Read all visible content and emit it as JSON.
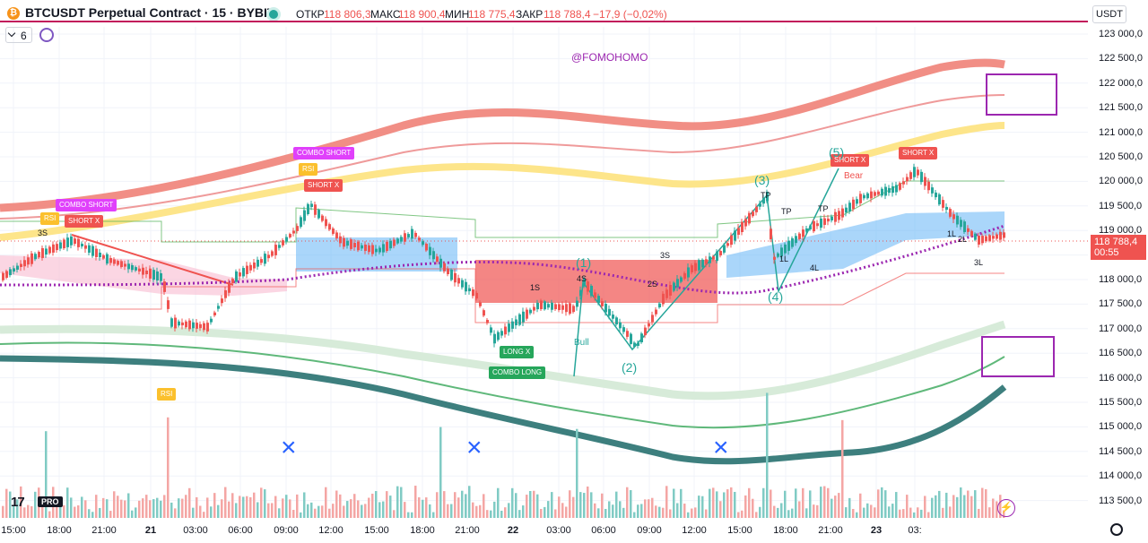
{
  "header": {
    "logo_glyph": "₿",
    "title": "BTCUSDT Perpetual Contract · 15 · BYBIT",
    "open_label": "ОТКР",
    "open_value": "118 806,3",
    "high_label": "МАКС",
    "high_value": "118 900,4",
    "low_label": "МИН",
    "low_value": "118 775,4",
    "close_label": "ЗАКР",
    "close_value": "118 788,4",
    "change": "−17,9 (−0,02%)"
  },
  "toolbar": {
    "interval_value": "6",
    "sync_icon": "sync-icon"
  },
  "currency": "USDT",
  "watermark": "@FOMOHOMO",
  "last_price": {
    "value": "118 788,4",
    "countdown": "00:55"
  },
  "price_axis": [
    "123 000,0",
    "122 500,0",
    "122 000,0",
    "121 500,0",
    "121 000,0",
    "120 500,0",
    "120 000,0",
    "119 500,0",
    "119 000,0",
    "118 500,0",
    "118 000,0",
    "117 500,0",
    "117 000,0",
    "116 500,0",
    "116 000,0",
    "115 500,0",
    "115 000,0",
    "114 500,0",
    "114 000,0",
    "113 500,0"
  ],
  "time_axis": [
    "15:00",
    "18:00",
    "21:00",
    "21",
    "03:00",
    "06:00",
    "09:00",
    "12:00",
    "15:00",
    "18:00",
    "21:00",
    "22",
    "03:00",
    "06:00",
    "09:00",
    "12:00",
    "15:00",
    "18:00",
    "21:00",
    "23",
    "03:"
  ],
  "signals": {
    "combo_short": "COMBO SHORT",
    "short_x": "SHORT X",
    "long_x": "LONG X",
    "combo_long": "COMBO LONG",
    "rsi": "RSI",
    "bear": "Bear",
    "bull": "Bull",
    "tp": "TP"
  },
  "markers": [
    "3S",
    "1S",
    "2S",
    "3S",
    "4S",
    "1L",
    "2L",
    "3L",
    "4L",
    "1L"
  ],
  "waves": [
    "(1)",
    "(2)",
    "(3)",
    "(4)",
    "(5)"
  ],
  "branding": {
    "tv": "17",
    "pro": "PRO"
  },
  "colors": {
    "up": "#26a69a",
    "down": "#ef5350",
    "accent": "#9c27b0"
  }
}
